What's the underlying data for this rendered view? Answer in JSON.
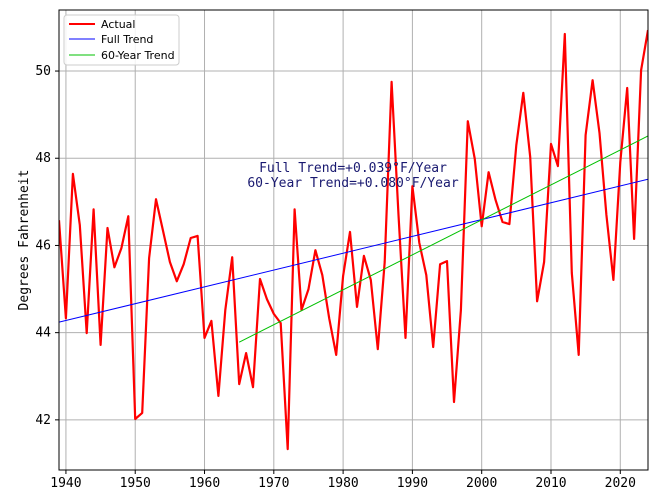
{
  "chart_data": {
    "type": "line",
    "title": "",
    "xlabel": "",
    "ylabel": "Degrees Fahrenheit",
    "xlim": [
      1939,
      2024
    ],
    "ylim": [
      40.85,
      51.4
    ],
    "grid": true,
    "legend_placement": "top-left",
    "xticks": [
      1940,
      1950,
      1960,
      1970,
      1980,
      1990,
      2000,
      2010,
      2020
    ],
    "yticks": [
      42,
      44,
      46,
      48,
      50
    ],
    "x": [
      1939,
      1940,
      1941,
      1942,
      1943,
      1944,
      1945,
      1946,
      1947,
      1948,
      1949,
      1950,
      1951,
      1952,
      1953,
      1954,
      1955,
      1956,
      1957,
      1958,
      1959,
      1960,
      1961,
      1962,
      1963,
      1964,
      1965,
      1966,
      1967,
      1968,
      1969,
      1970,
      1971,
      1972,
      1973,
      1974,
      1975,
      1976,
      1977,
      1978,
      1979,
      1980,
      1981,
      1982,
      1983,
      1984,
      1985,
      1986,
      1987,
      1988,
      1989,
      1990,
      1991,
      1992,
      1993,
      1994,
      1995,
      1996,
      1997,
      1998,
      1999,
      2000,
      2001,
      2002,
      2003,
      2004,
      2005,
      2006,
      2007,
      2008,
      2009,
      2010,
      2011,
      2012,
      2013,
      2014,
      2015,
      2016,
      2017,
      2018,
      2019,
      2020,
      2021,
      2022,
      2023,
      2024
    ],
    "series": [
      {
        "name": "Actual",
        "color": "#ff0000",
        "values": [
          46.58,
          44.33,
          47.64,
          46.47,
          43.99,
          46.83,
          43.72,
          46.4,
          45.5,
          45.94,
          46.67,
          42.02,
          42.16,
          45.71,
          47.06,
          46.35,
          45.62,
          45.18,
          45.57,
          46.17,
          46.22,
          43.88,
          44.27,
          42.55,
          44.52,
          45.73,
          42.82,
          43.53,
          42.75,
          45.23,
          44.77,
          44.43,
          44.22,
          41.33,
          46.83,
          44.52,
          45.0,
          45.89,
          45.32,
          44.33,
          43.49,
          45.3,
          46.31,
          44.59,
          45.76,
          45.21,
          43.62,
          45.62,
          49.75,
          46.7,
          43.88,
          47.36,
          46.06,
          45.32,
          43.67,
          45.57,
          45.64,
          42.41,
          44.52,
          48.85,
          47.98,
          46.44,
          47.68,
          47.04,
          46.54,
          46.49,
          48.3,
          49.5,
          48.03,
          44.72,
          45.62,
          48.33,
          47.82,
          50.85,
          45.37,
          43.49,
          48.53,
          49.79,
          48.58,
          46.7,
          45.21,
          47.91,
          49.61,
          46.15,
          50.02,
          50.94
        ]
      },
      {
        "name": "Full Trend",
        "color": "#0000ff",
        "x": [
          1939,
          2024
        ],
        "values": [
          44.24,
          47.52
        ]
      },
      {
        "name": "60-Year Trend",
        "color": "#00c000",
        "x": [
          1965,
          2024
        ],
        "values": [
          43.78,
          48.51
        ]
      }
    ],
    "annotations": [
      "Full Trend=+0.039°F/Year",
      "60-Year Trend=+0.080°F/Year"
    ]
  }
}
